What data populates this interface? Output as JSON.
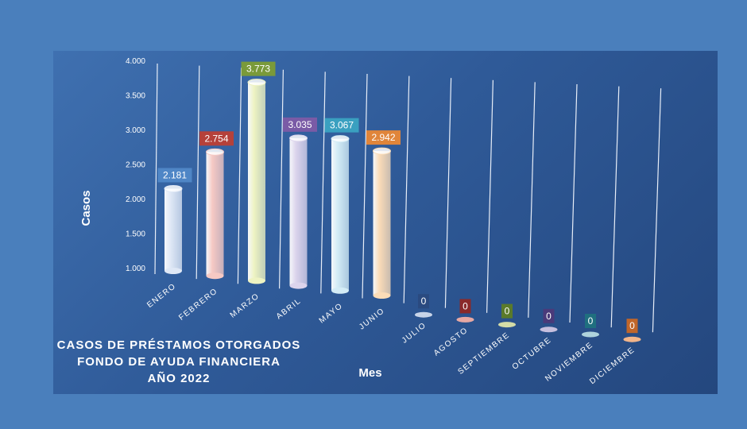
{
  "chart_data": {
    "type": "bar",
    "title_lines": [
      "CASOS DE PRÉSTAMOS OTORGADOS",
      "FONDO DE AYUDA FINANCIERA",
      "AÑO 2022"
    ],
    "xlabel": "Mes",
    "ylabel": "Casos",
    "ylim": [
      1000,
      4000
    ],
    "y_ticks": [
      "1.000",
      "1.500",
      "2.000",
      "2.500",
      "3.000",
      "3.500",
      "4.000"
    ],
    "categories": [
      "ENERO",
      "FEBRERO",
      "MARZO",
      "ABRIL",
      "MAYO",
      "JUNIO",
      "JULIO",
      "AGOSTO",
      "SEPTIEMBRE",
      "OCTUBRE",
      "NOVIEMBRE",
      "DICIEMBRE"
    ],
    "values": [
      2181,
      2754,
      3773,
      3035,
      3067,
      2942,
      0,
      0,
      0,
      0,
      0,
      0
    ],
    "value_labels": [
      "2.181",
      "2.754",
      "3.773",
      "3.035",
      "3.067",
      "2.942",
      "0",
      "0",
      "0",
      "0",
      "0",
      "0"
    ],
    "colors": [
      "#dfe8f6",
      "#f6c9c4",
      "#eef3c2",
      "#dcd4ec",
      "#d3ecf6",
      "#fbdcb8",
      "#c8d4e8",
      "#e7a8a3",
      "#d4dca7",
      "#c6bfde",
      "#aed3dc",
      "#f2b58a"
    ],
    "label_colors": [
      "#4f86c6",
      "#b5413a",
      "#7a9a3a",
      "#7a5ba6",
      "#3aa0c0",
      "#e0853a",
      "#2a4a80",
      "#8a2a2a",
      "#5a7a2a",
      "#4a3a7a",
      "#1f6f7f",
      "#c0662a"
    ],
    "grid": true,
    "legend": "none"
  }
}
